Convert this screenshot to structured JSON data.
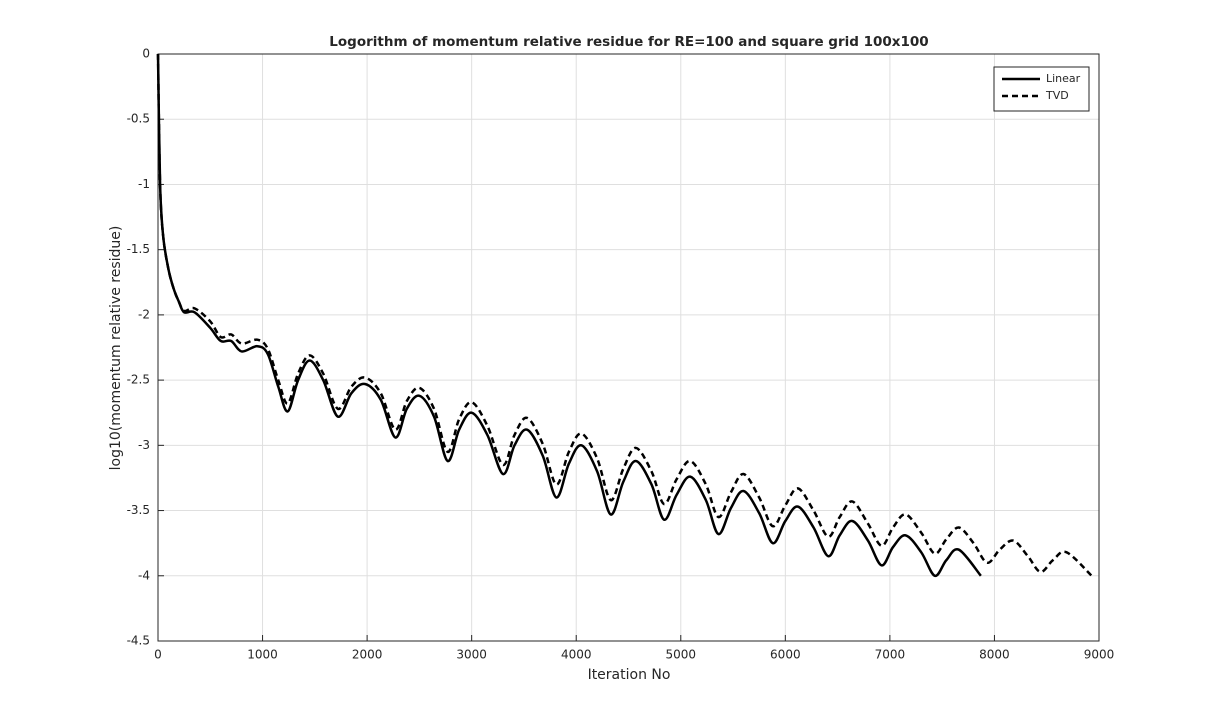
{
  "chart_data": {
    "type": "line",
    "title": "Logorithm of momentum relative residue for RE=100 and square grid 100x100",
    "xlabel": "Iteration No",
    "ylabel": "log10(momentum relative residue)",
    "xlim": [
      0,
      9000
    ],
    "ylim": [
      -4.5,
      0
    ],
    "xticks": [
      0,
      1000,
      2000,
      3000,
      4000,
      5000,
      6000,
      7000,
      8000,
      9000
    ],
    "yticks": [
      0,
      -0.5,
      -1,
      -1.5,
      -2,
      -2.5,
      -3,
      -3.5,
      -4,
      -4.5
    ],
    "grid": true,
    "legend": "upper right",
    "series": [
      {
        "name": "Linear",
        "color": "#000000",
        "line_style": "solid",
        "x": [
          0,
          20,
          50,
          100,
          150,
          200,
          250,
          350,
          500,
          600,
          700,
          800,
          950,
          1050,
          1150,
          1240,
          1340,
          1450,
          1580,
          1720,
          1850,
          1980,
          2130,
          2270,
          2380,
          2500,
          2640,
          2770,
          2880,
          3000,
          3150,
          3300,
          3410,
          3530,
          3680,
          3810,
          3930,
          4050,
          4200,
          4330,
          4450,
          4570,
          4720,
          4840,
          4960,
          5090,
          5240,
          5360,
          5480,
          5600,
          5750,
          5880,
          6000,
          6120,
          6270,
          6410,
          6520,
          6640,
          6790,
          6920,
          7030,
          7150,
          7300,
          7430,
          7540,
          7660,
          7870
        ],
        "values": [
          0,
          -1.0,
          -1.4,
          -1.65,
          -1.8,
          -1.9,
          -1.98,
          -1.98,
          -2.1,
          -2.2,
          -2.2,
          -2.28,
          -2.24,
          -2.3,
          -2.55,
          -2.74,
          -2.5,
          -2.35,
          -2.5,
          -2.78,
          -2.6,
          -2.53,
          -2.65,
          -2.94,
          -2.72,
          -2.62,
          -2.78,
          -3.12,
          -2.88,
          -2.75,
          -2.92,
          -3.22,
          -3.0,
          -2.88,
          -3.08,
          -3.4,
          -3.14,
          -3.0,
          -3.2,
          -3.53,
          -3.28,
          -3.12,
          -3.3,
          -3.57,
          -3.38,
          -3.24,
          -3.42,
          -3.68,
          -3.48,
          -3.35,
          -3.52,
          -3.75,
          -3.58,
          -3.47,
          -3.63,
          -3.85,
          -3.69,
          -3.58,
          -3.73,
          -3.92,
          -3.78,
          -3.69,
          -3.82,
          -4.0,
          -3.88,
          -3.8,
          -4.0
        ]
      },
      {
        "name": "TVD",
        "color": "#000000",
        "line_style": "dashed",
        "x": [
          0,
          20,
          50,
          100,
          150,
          200,
          250,
          350,
          500,
          600,
          700,
          800,
          950,
          1050,
          1150,
          1240,
          1340,
          1450,
          1580,
          1720,
          1850,
          1980,
          2130,
          2270,
          2380,
          2500,
          2640,
          2770,
          2880,
          3000,
          3150,
          3300,
          3410,
          3530,
          3680,
          3810,
          3930,
          4050,
          4200,
          4330,
          4450,
          4570,
          4720,
          4840,
          4960,
          5090,
          5240,
          5360,
          5480,
          5600,
          5750,
          5880,
          6000,
          6120,
          6270,
          6410,
          6520,
          6640,
          6790,
          6920,
          7030,
          7150,
          7300,
          7430,
          7540,
          7660,
          7800,
          7930,
          8050,
          8180,
          8320,
          8440,
          8560,
          8690,
          8930
        ],
        "values": [
          0,
          -1.0,
          -1.4,
          -1.65,
          -1.8,
          -1.9,
          -1.97,
          -1.95,
          -2.05,
          -2.17,
          -2.15,
          -2.22,
          -2.19,
          -2.26,
          -2.5,
          -2.68,
          -2.45,
          -2.31,
          -2.45,
          -2.72,
          -2.55,
          -2.48,
          -2.6,
          -2.88,
          -2.66,
          -2.56,
          -2.72,
          -3.05,
          -2.8,
          -2.67,
          -2.85,
          -3.15,
          -2.92,
          -2.79,
          -2.99,
          -3.3,
          -3.05,
          -2.91,
          -3.1,
          -3.42,
          -3.18,
          -3.02,
          -3.2,
          -3.45,
          -3.26,
          -3.12,
          -3.3,
          -3.55,
          -3.36,
          -3.22,
          -3.4,
          -3.62,
          -3.46,
          -3.33,
          -3.5,
          -3.7,
          -3.55,
          -3.43,
          -3.6,
          -3.77,
          -3.63,
          -3.53,
          -3.67,
          -3.83,
          -3.72,
          -3.63,
          -3.75,
          -3.9,
          -3.8,
          -3.73,
          -3.85,
          -3.97,
          -3.88,
          -3.82,
          -4.0
        ]
      }
    ]
  }
}
